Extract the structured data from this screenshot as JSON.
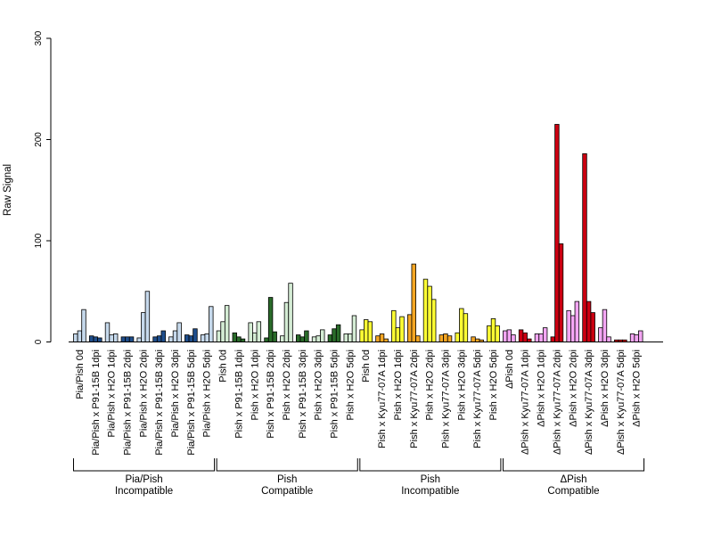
{
  "chart_data": {
    "type": "bar",
    "title": "",
    "xlabel": "",
    "ylabel": "Raw Signal",
    "ylim": [
      0,
      300
    ],
    "yticks": [
      0,
      100,
      200,
      300
    ],
    "grid": false,
    "legend": "none",
    "colors": {
      "light_blue": "#c6d9ec",
      "dark_blue": "#1f4e8c",
      "light_green": "#d4ecd4",
      "dark_green": "#2a6b2a",
      "yellow": "#ffff33",
      "orange": "#f5a623",
      "red": "#cc0011",
      "pink": "#f4a6f4"
    },
    "categories": [
      {
        "label": "Pia/Pish 0d",
        "values": [
          8,
          11,
          32
        ],
        "color": "light_blue"
      },
      {
        "label": "Pia/Pish x P91-15B 1dpi",
        "values": [
          6,
          5,
          4
        ],
        "color": "dark_blue"
      },
      {
        "label": "Pia/Pish x H2O 1dpi",
        "values": [
          19,
          7,
          8
        ],
        "color": "light_blue"
      },
      {
        "label": "Pia/Pish x P91-15B 2dpi",
        "values": [
          5,
          5,
          5
        ],
        "color": "dark_blue"
      },
      {
        "label": "Pia/Pish x H2O 2dpi",
        "values": [
          4,
          29,
          50
        ],
        "color": "light_blue"
      },
      {
        "label": "Pia/Pish x P91-15B 3dpi",
        "values": [
          5,
          6,
          11
        ],
        "color": "dark_blue"
      },
      {
        "label": "Pia/Pish x H2O 3dpi",
        "values": [
          5,
          11,
          19
        ],
        "color": "light_blue"
      },
      {
        "label": "Pia/Pish x P91-15B 5dpi",
        "values": [
          7,
          6,
          13
        ],
        "color": "dark_blue"
      },
      {
        "label": "Pia/Pish x H2O 5dpi",
        "values": [
          7,
          8,
          35
        ],
        "color": "light_blue"
      },
      {
        "label": "Pish 0d",
        "values": [
          11,
          20,
          36
        ],
        "color": "light_green"
      },
      {
        "label": "Pish x P91-15B 1dpi",
        "values": [
          9,
          5,
          3
        ],
        "color": "dark_green"
      },
      {
        "label": "Pish x H2O 1dpi",
        "values": [
          19,
          9,
          20
        ],
        "color": "light_green"
      },
      {
        "label": "Pish x P91-15B 2dpi",
        "values": [
          4,
          44,
          10
        ],
        "color": "dark_green"
      },
      {
        "label": "Pish x H2O 2dpi",
        "values": [
          6,
          39,
          58
        ],
        "color": "light_green"
      },
      {
        "label": "Pish x P91-15B 3dpi",
        "values": [
          7,
          5,
          11
        ],
        "color": "dark_green"
      },
      {
        "label": "Pish x H2O 3dpi",
        "values": [
          5,
          6,
          12
        ],
        "color": "light_green"
      },
      {
        "label": "Pish x P91-15B 5dpi",
        "values": [
          7,
          13,
          17
        ],
        "color": "dark_green"
      },
      {
        "label": "Pish x H2O 5dpi",
        "values": [
          8,
          8,
          26
        ],
        "color": "light_green"
      },
      {
        "label": "Pish 0d",
        "values": [
          12,
          22,
          20
        ],
        "color": "yellow"
      },
      {
        "label": "Pish x Kyu77-07A 1dpi",
        "values": [
          6,
          8,
          3
        ],
        "color": "orange"
      },
      {
        "label": "Pish x H2O 1dpi",
        "values": [
          31,
          14,
          25
        ],
        "color": "yellow"
      },
      {
        "label": "Pish x Kyu77-07A 2dpi",
        "values": [
          27,
          77,
          6
        ],
        "color": "orange"
      },
      {
        "label": "Pish x H2O 2dpi",
        "values": [
          62,
          55,
          42
        ],
        "color": "yellow"
      },
      {
        "label": "Pish x Kyu77-07A 3dpi",
        "values": [
          7,
          8,
          6
        ],
        "color": "orange"
      },
      {
        "label": "Pish x H2O 3dpi",
        "values": [
          9,
          33,
          28
        ],
        "color": "yellow"
      },
      {
        "label": "Pish x Kyu77-07A 5dpi",
        "values": [
          5,
          3,
          2
        ],
        "color": "orange"
      },
      {
        "label": "Pish x H2O 5dpi",
        "values": [
          16,
          23,
          16
        ],
        "color": "yellow"
      },
      {
        "label": "ΔPish 0d",
        "values": [
          11,
          12,
          7
        ],
        "color": "pink"
      },
      {
        "label": "ΔPish x Kyu77-07A 1dpi",
        "values": [
          12,
          9,
          3
        ],
        "color": "red"
      },
      {
        "label": "ΔPish x H2O 1dpi",
        "values": [
          8,
          8,
          14
        ],
        "color": "pink"
      },
      {
        "label": "ΔPish x Kyu77-07A 2dpi",
        "values": [
          5,
          215,
          97
        ],
        "color": "red"
      },
      {
        "label": "ΔPish x H2O 2dpi",
        "values": [
          31,
          26,
          40
        ],
        "color": "pink"
      },
      {
        "label": "ΔPish x Kyu77-07A 3dpi",
        "values": [
          186,
          40,
          29
        ],
        "color": "red"
      },
      {
        "label": "ΔPish x H2O 3dpi",
        "values": [
          14,
          32,
          5
        ],
        "color": "pink"
      },
      {
        "label": "ΔPish x Kyu77-07A 5dpi",
        "values": [
          2,
          2,
          2
        ],
        "color": "red"
      },
      {
        "label": "ΔPish x H2O 5dpi",
        "values": [
          8,
          7,
          11
        ],
        "color": "pink"
      }
    ],
    "groups": [
      {
        "label_line1": "Pia/Pish",
        "label_line2": "Incompatible",
        "start": 0,
        "end": 8
      },
      {
        "label_line1": "Pish",
        "label_line2": "Compatible",
        "start": 9,
        "end": 17
      },
      {
        "label_line1": "Pish",
        "label_line2": "Incompatible",
        "start": 18,
        "end": 26
      },
      {
        "label_line1": "ΔPish",
        "label_line2": "Compatible",
        "start": 27,
        "end": 35
      }
    ]
  }
}
